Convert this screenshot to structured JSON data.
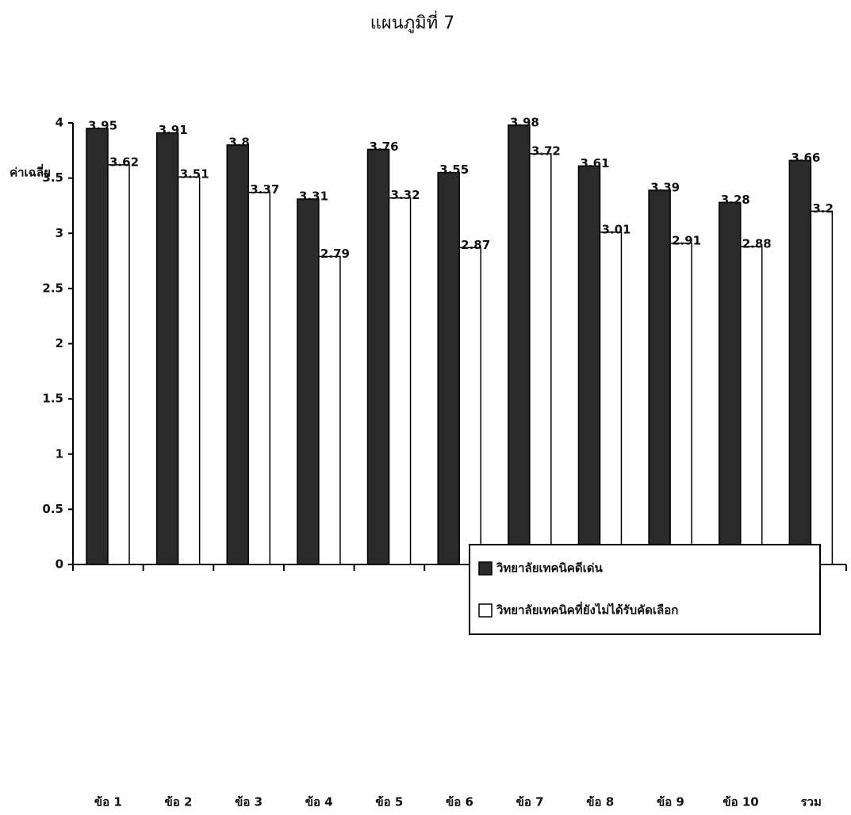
{
  "chart_data": {
    "type": "bar",
    "title": "แผนภูมิที่ 7",
    "y_label": "ค่าเฉลี่ย",
    "categories": [
      "ข้อ 1",
      "ข้อ 2",
      "ข้อ 3",
      "ข้อ 4",
      "ข้อ 5",
      "ข้อ 6",
      "ข้อ 7",
      "ข้อ 8",
      "ข้อ 9",
      "ข้อ 10",
      "รวม"
    ],
    "series": [
      {
        "name": "วิทยาลัยเทคนิคดีเด่น",
        "color": "#2a2a2a",
        "values": [
          3.95,
          3.91,
          3.8,
          3.31,
          3.76,
          3.55,
          3.98,
          3.61,
          3.39,
          3.28,
          3.66
        ]
      },
      {
        "name": "วิทยาลัยเทคนิคที่ยังไม่ได้รับคัดเลือก",
        "color": "#ffffff",
        "values": [
          3.62,
          3.51,
          3.37,
          2.79,
          3.32,
          2.87,
          3.72,
          3.01,
          2.91,
          2.88,
          3.2
        ]
      }
    ],
    "ylim": [
      0,
      4
    ],
    "yticks": [
      0,
      0.5,
      1,
      1.5,
      2,
      2.5,
      3,
      3.5,
      4
    ],
    "grid": false
  }
}
